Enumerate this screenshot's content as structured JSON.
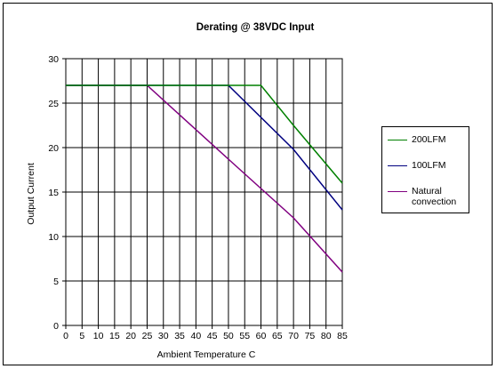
{
  "chart_data": {
    "type": "line",
    "title": "Derating @ 38VDC Input",
    "xlabel": "Ambient Temperature C",
    "ylabel": "Output Current",
    "xlim": [
      0,
      85
    ],
    "ylim": [
      0,
      30
    ],
    "x_ticks": [
      0,
      5,
      10,
      15,
      20,
      25,
      30,
      35,
      40,
      45,
      50,
      55,
      60,
      65,
      70,
      75,
      80,
      85
    ],
    "y_ticks": [
      0,
      5,
      10,
      15,
      20,
      25,
      30
    ],
    "grid": true,
    "legend_position": "right",
    "series": [
      {
        "name": "200LFM",
        "color": "#008000",
        "points": [
          [
            0,
            27
          ],
          [
            60,
            27
          ],
          [
            70,
            22.5
          ],
          [
            85,
            16
          ]
        ]
      },
      {
        "name": "100LFM",
        "color": "#000080",
        "points": [
          [
            0,
            27
          ],
          [
            50,
            27
          ],
          [
            70,
            19.8
          ],
          [
            85,
            13
          ]
        ]
      },
      {
        "name": "Natural convection",
        "color": "#800080",
        "points": [
          [
            0,
            27
          ],
          [
            25,
            27
          ],
          [
            50,
            18.7
          ],
          [
            70,
            12.1
          ],
          [
            85,
            6
          ]
        ]
      }
    ]
  }
}
